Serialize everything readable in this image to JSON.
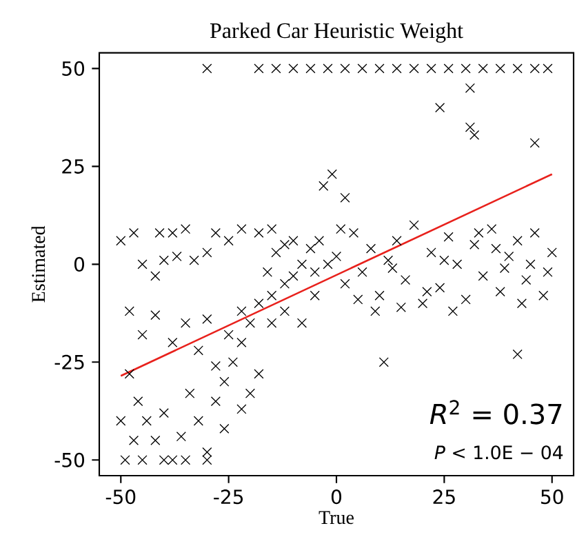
{
  "chart_data": {
    "type": "scatter",
    "title": "Parked Car Heuristic Weight",
    "xlabel": "True",
    "ylabel": "Estimated",
    "xlim": [
      -55,
      55
    ],
    "ylim": [
      -54,
      54
    ],
    "xticks": [
      -50,
      -25,
      0,
      25,
      50
    ],
    "yticks": [
      -50,
      -25,
      0,
      25,
      50
    ],
    "grid": false,
    "annotations": [
      "*R*$^{2}$ = 0.37",
      "*P* < 1.0E − 04"
    ],
    "series": [
      {
        "color": "#000000",
        "x": [
          -30,
          -18,
          -14,
          -10,
          -6,
          -2,
          2,
          6,
          10,
          14,
          18,
          22,
          26,
          30,
          34,
          38,
          42,
          46,
          49,
          24,
          31,
          31,
          32,
          46,
          -3,
          -1,
          2,
          11,
          42,
          -50,
          -47,
          -41,
          -38,
          -35,
          -45,
          -42,
          -40,
          -37,
          -33,
          -30,
          -28,
          -25,
          -22,
          -18,
          -15,
          -48,
          -45,
          -42,
          -38,
          -35,
          -32,
          -30,
          -28,
          -25,
          -22,
          -48,
          -46,
          -44,
          -42,
          -40,
          -38,
          -36,
          -34,
          -32,
          -30,
          -28,
          -26,
          -24,
          -22,
          -20,
          -49,
          -45,
          -40,
          -35,
          -30,
          -26,
          -22,
          -20,
          -18,
          -50,
          -47,
          -18,
          -15,
          -12,
          -10,
          -8,
          -16,
          -14,
          -12,
          -10,
          -6,
          -5,
          -4,
          -2,
          -15,
          -12,
          -8,
          -5,
          0,
          2,
          4,
          6,
          8,
          10,
          12,
          14,
          16,
          18,
          20,
          22,
          24,
          26,
          28,
          30,
          32,
          34,
          36,
          38,
          40,
          42,
          44,
          46,
          48,
          50,
          1,
          5,
          9,
          15,
          21,
          27,
          33,
          39,
          45,
          49,
          13,
          25,
          37,
          43
        ],
        "marker": "cross",
        "values": [
          50,
          50,
          50,
          50,
          50,
          50,
          50,
          50,
          50,
          50,
          50,
          50,
          50,
          50,
          50,
          50,
          50,
          50,
          50,
          40,
          45,
          35,
          33,
          31,
          20,
          23,
          17,
          -25,
          -23,
          6,
          8,
          8,
          8,
          9,
          0,
          -3,
          1,
          2,
          1,
          3,
          8,
          6,
          9,
          8,
          9,
          -12,
          -18,
          -13,
          -20,
          -15,
          -22,
          -14,
          -26,
          -18,
          -12,
          -28,
          -35,
          -40,
          -45,
          -38,
          -50,
          -44,
          -33,
          -40,
          -48,
          -35,
          -30,
          -25,
          -20,
          -15,
          -50,
          -50,
          -50,
          -50,
          -50,
          -42,
          -37,
          -33,
          -28,
          -40,
          -45,
          -10,
          -8,
          -5,
          -3,
          0,
          -2,
          3,
          5,
          6,
          4,
          -2,
          6,
          0,
          -15,
          -12,
          -15,
          -8,
          2,
          -5,
          8,
          -2,
          4,
          -8,
          1,
          6,
          -4,
          10,
          -10,
          3,
          -6,
          7,
          0,
          -9,
          5,
          -3,
          9,
          -7,
          2,
          6,
          -4,
          8,
          -8,
          3,
          9,
          -9,
          -12,
          -11,
          -7,
          -12,
          8,
          -1,
          0,
          -2,
          -1,
          1,
          4,
          -10
        ]
      },
      {
        "type": "line",
        "marker": "none",
        "color": "#e8211c",
        "x": [
          -50,
          50
        ],
        "values": [
          -28.5,
          23
        ]
      }
    ]
  }
}
